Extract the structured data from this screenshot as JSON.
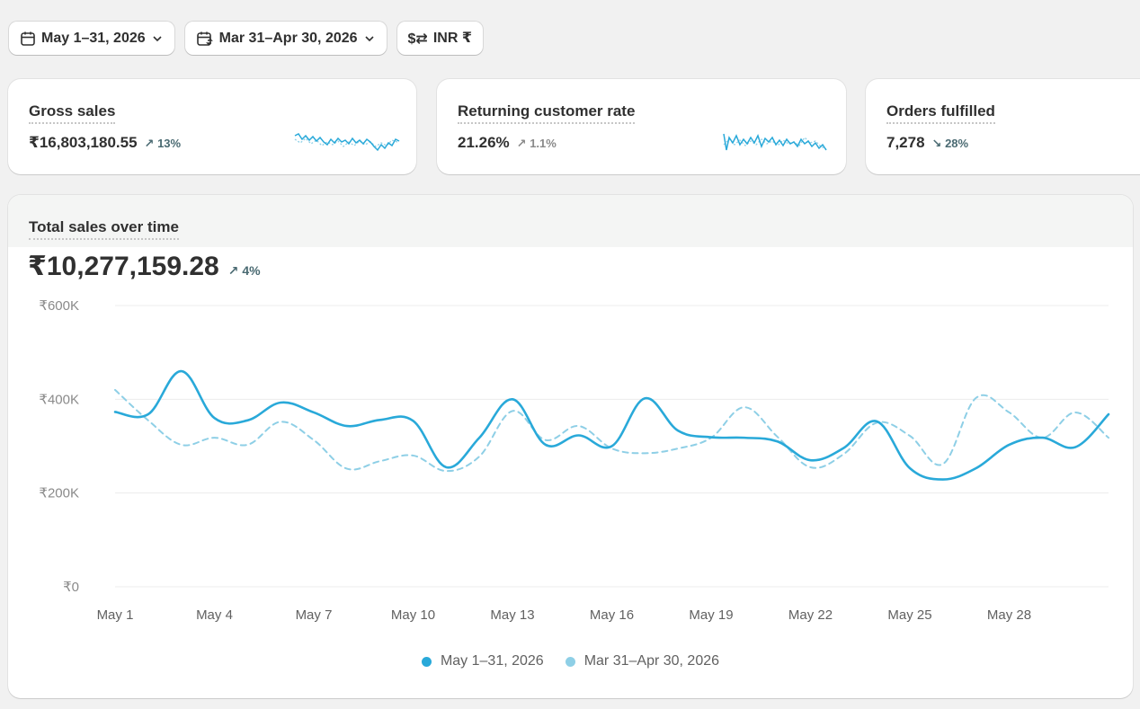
{
  "toolbar": {
    "date_range": "May 1–31, 2026",
    "compare_range": "Mar 31–Apr 30, 2026",
    "currency": "INR ₹",
    "icons": [
      "calendar-icon",
      "calendar-compare-icon",
      "chevron-down-icon",
      "currency-swap-icon"
    ]
  },
  "metrics": [
    {
      "title": "Gross sales",
      "value": "₹16,803,180.55",
      "change": "13%",
      "direction": "up"
    },
    {
      "title": "Returning customer rate",
      "value": "21.26%",
      "change": "1.1%",
      "direction": "up"
    },
    {
      "title": "Orders fulfilled",
      "value": "7,278",
      "change": "28%",
      "direction": "down"
    }
  ],
  "colors": {
    "primary": "#29a9d9",
    "comparison": "#8ecfe6",
    "change_text": "#4a6a72",
    "muted_text": "#8a8a8a"
  },
  "sales_panel": {
    "title": "Total sales over time",
    "value": "₹10,277,159.28",
    "change": "4%",
    "direction": "up"
  },
  "chart_data": {
    "type": "line",
    "x": [
      "May 1",
      "May 2",
      "May 3",
      "May 4",
      "May 5",
      "May 6",
      "May 7",
      "May 8",
      "May 9",
      "May 10",
      "May 11",
      "May 12",
      "May 13",
      "May 14",
      "May 15",
      "May 16",
      "May 17",
      "May 18",
      "May 19",
      "May 20",
      "May 21",
      "May 22",
      "May 23",
      "May 24",
      "May 25",
      "May 26",
      "May 27",
      "May 28",
      "May 29",
      "May 30",
      "May 31"
    ],
    "x_tick_labels": [
      "May 1",
      "May 4",
      "May 7",
      "May 10",
      "May 13",
      "May 16",
      "May 19",
      "May 22",
      "May 25",
      "May 28"
    ],
    "y_tick_labels": [
      "₹0",
      "₹200K",
      "₹400K",
      "₹600K"
    ],
    "ylim": [
      0,
      600000
    ],
    "grid": true,
    "legend_position": "bottom",
    "series": [
      {
        "name": "May 1–31, 2026",
        "color": "#29a9d9",
        "style": "solid",
        "values": [
          373000,
          368000,
          460000,
          360000,
          355000,
          393000,
          372000,
          343000,
          356000,
          354000,
          255000,
          318000,
          400000,
          303000,
          323000,
          300000,
          402000,
          333000,
          319000,
          318000,
          310000,
          270000,
          296000,
          353000,
          253000,
          229000,
          253000,
          303000,
          318000,
          298000,
          368000
        ]
      },
      {
        "name": "Mar 31–Apr 30, 2026",
        "color": "#8ecfe6",
        "style": "dashed",
        "values": [
          420000,
          355000,
          303000,
          318000,
          303000,
          352000,
          313000,
          252000,
          268000,
          280000,
          247000,
          278000,
          375000,
          313000,
          343000,
          295000,
          285000,
          295000,
          318000,
          383000,
          320000,
          255000,
          283000,
          350000,
          322000,
          262000,
          403000,
          372000,
          318000,
          372000,
          318000
        ]
      }
    ]
  }
}
